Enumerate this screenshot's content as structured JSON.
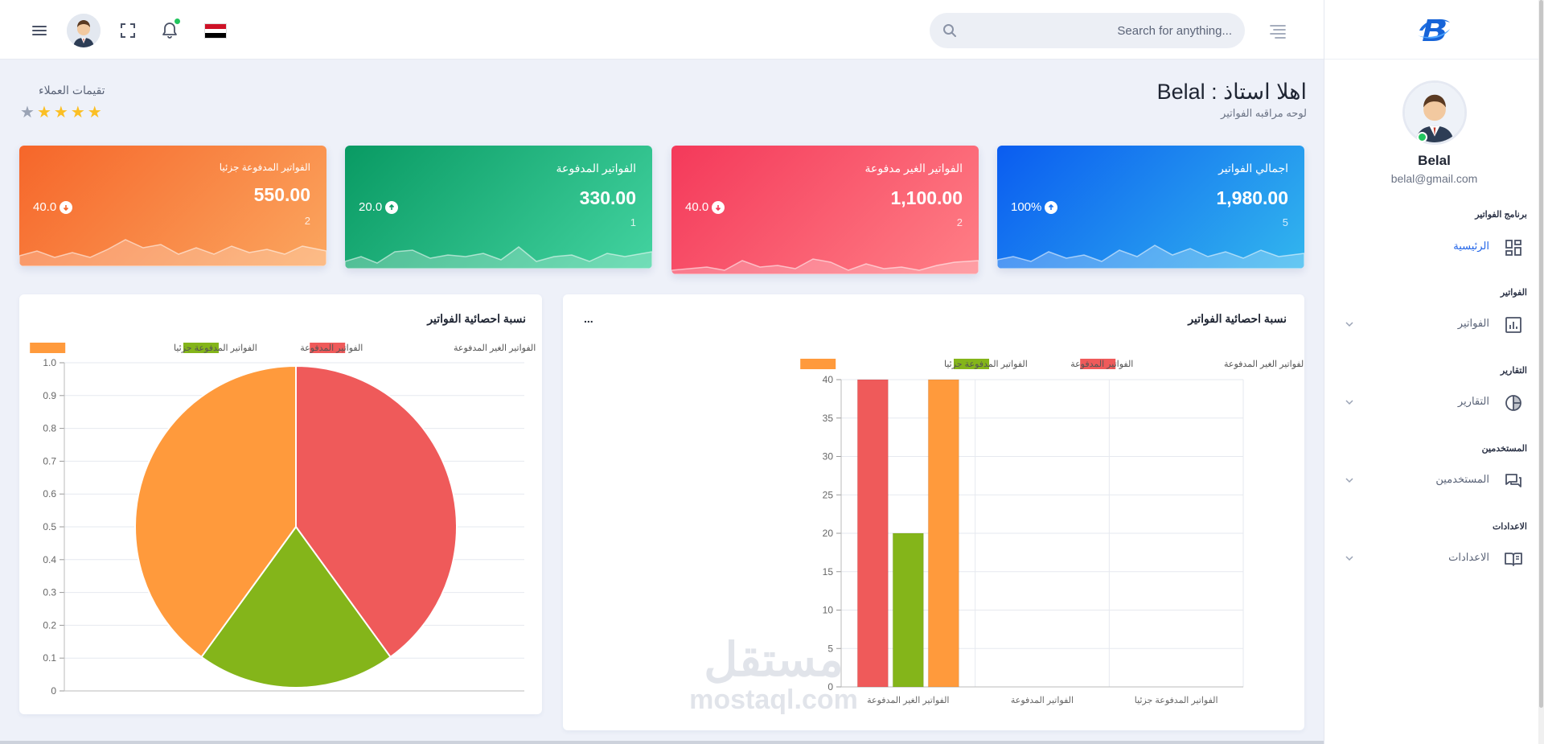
{
  "header": {
    "search_placeholder": "Search for anything...",
    "icons": [
      "menu-icon",
      "avatar",
      "fullscreen-icon",
      "bell-icon",
      "egypt-flag",
      "search-icon",
      "align-right-icon"
    ]
  },
  "sidebar": {
    "user_name": "Belal",
    "user_email": "belal@gmail.com",
    "sections": [
      {
        "title": "برنامج الفواتير",
        "item": {
          "label": "الرئيسية",
          "icon": "dashboard-icon",
          "active": true
        }
      },
      {
        "title": "الفواتير",
        "item": {
          "label": "الفواتير",
          "icon": "chart-bar-icon",
          "active": false
        }
      },
      {
        "title": "التقارير",
        "item": {
          "label": "التقارير",
          "icon": "pie-chart-icon",
          "active": false
        }
      },
      {
        "title": "المستخدمين",
        "item": {
          "label": "المستخدمين",
          "icon": "chat-icon",
          "active": false
        }
      },
      {
        "title": "الاعدادات",
        "item": {
          "label": "الاعدادات",
          "icon": "book-icon",
          "active": false
        }
      }
    ]
  },
  "page": {
    "welcome": "اهلا استاذ : Belal",
    "subtitle": "لوحه مراقبه الفواتير",
    "ratings_title": "تقيمات العملاء",
    "ratings": {
      "filled": 4,
      "total": 5
    }
  },
  "cards": [
    {
      "title": "اجمالي الفواتير",
      "value": "1,980.00",
      "count": "5",
      "percent": "100%",
      "direction": "up",
      "colors": [
        "#0a5cf0",
        "#32b6ee"
      ]
    },
    {
      "title": "الفواتير الغير مدفوعة",
      "value": "1,100.00",
      "count": "2",
      "percent": "40.0",
      "direction": "down",
      "colors": [
        "#f4395a",
        "#ff7f86"
      ]
    },
    {
      "title": "الفواتير المدفوعة",
      "value": "330.00",
      "count": "1",
      "percent": "20.0",
      "direction": "up",
      "colors": [
        "#099a63",
        "#43d3a0"
      ]
    },
    {
      "title": "الفواتير المدفوعة جزئيا",
      "value": "550.00",
      "count": "2",
      "percent": "40.0",
      "direction": "down",
      "colors": [
        "#f6662a",
        "#fba65f"
      ]
    }
  ],
  "charts": {
    "bar_panel_title": "نسبة احصائية الفواتير",
    "bar_panel_dots": "...",
    "pie_panel_title": "نسبة احصائية الفواتير"
  },
  "chart_data": [
    {
      "type": "bar",
      "categories": [
        "الفواتير الغير المدفوعة",
        "الفواتير المدفوعة",
        "الفواتير المدفوعة جزئيا"
      ],
      "series": [
        {
          "name": "الفواتير الغير المدفوعة",
          "color": "#ef5a5a",
          "values": [
            40,
            0,
            0
          ]
        },
        {
          "name": "الفواتير المدفوعة",
          "color": "#84b51a",
          "values": [
            20,
            0,
            0
          ]
        },
        {
          "name": "الفواتير المدفوعة جزئيا",
          "color": "#ff9a3c",
          "values": [
            40,
            0,
            0
          ]
        }
      ],
      "yticks": [
        0,
        5,
        10,
        15,
        20,
        25,
        30,
        35,
        40
      ],
      "ylim": [
        0,
        40
      ],
      "grid": true,
      "legend": "top"
    },
    {
      "type": "pie",
      "labels": [
        "الفواتير الغير المدفوعة",
        "الفواتير المدفوعة",
        "الفواتير المدفوعة جزئيا"
      ],
      "values": [
        40,
        20,
        40
      ],
      "colors": [
        "#ef5a5a",
        "#84b51a",
        "#ff9a3c"
      ],
      "yticks": [
        "0",
        "0.1",
        "0.2",
        "0.3",
        "0.4",
        "0.5",
        "0.6",
        "0.7",
        "0.8",
        "0.9",
        "1.0"
      ],
      "legend": "top"
    }
  ]
}
